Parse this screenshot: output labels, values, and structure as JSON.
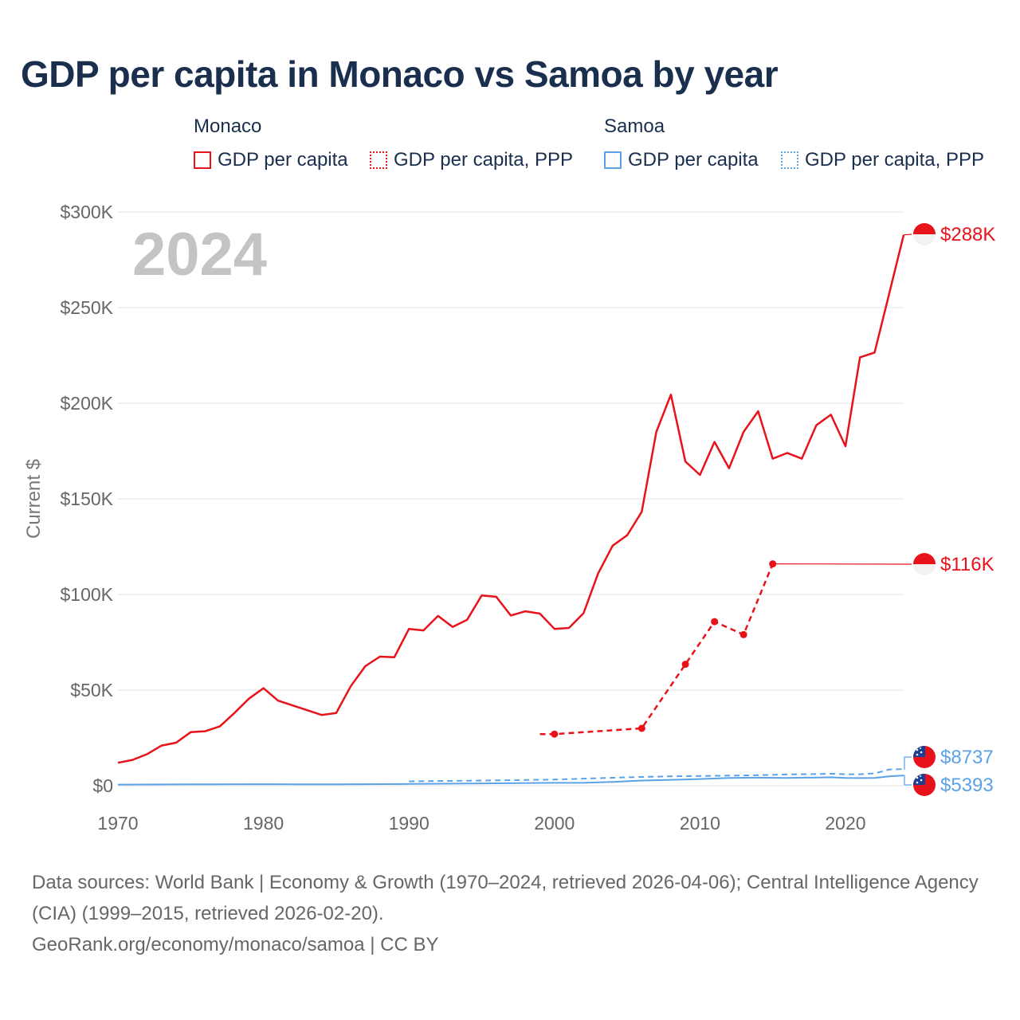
{
  "chart_data": {
    "type": "line",
    "title": "GDP per capita in Monaco vs Samoa by year",
    "ylabel": "Current $",
    "xlabel": "",
    "xlim": [
      1970,
      2024
    ],
    "ylim": [
      0,
      300000
    ],
    "x_ticks": [
      1970,
      1980,
      1990,
      2000,
      2010,
      2020
    ],
    "x_tick_labels": [
      "1970",
      "1980",
      "1990",
      "2000",
      "2010",
      "2020"
    ],
    "y_ticks": [
      0,
      50000,
      100000,
      150000,
      200000,
      250000,
      300000
    ],
    "y_tick_labels": [
      "$0",
      "$50K",
      "$100K",
      "$150K",
      "$200K",
      "$250K",
      "$300K"
    ],
    "year_watermark": "2024",
    "legend": {
      "groups": [
        {
          "name": "Monaco",
          "items": [
            {
              "label": "GDP per capita",
              "style": "solid",
              "color": "#e8121a"
            },
            {
              "label": "GDP per capita, PPP",
              "style": "dotted",
              "color": "#e8121a"
            }
          ]
        },
        {
          "name": "Samoa",
          "items": [
            {
              "label": "GDP per capita",
              "style": "solid",
              "color": "#5ba2e6"
            },
            {
              "label": "GDP per capita, PPP",
              "style": "dotted",
              "color": "#5ba2e6"
            }
          ]
        }
      ]
    },
    "series": [
      {
        "name": "Monaco GDP per capita",
        "color": "#e8121a",
        "style": "solid",
        "markers": false,
        "end_label": "$288K",
        "x": [
          1970,
          1971,
          1972,
          1973,
          1974,
          1975,
          1976,
          1977,
          1978,
          1979,
          1980,
          1981,
          1982,
          1983,
          1984,
          1985,
          1986,
          1987,
          1988,
          1989,
          1990,
          1991,
          1992,
          1993,
          1994,
          1995,
          1996,
          1997,
          1998,
          1999,
          2000,
          2001,
          2002,
          2003,
          2004,
          2005,
          2006,
          2007,
          2008,
          2009,
          2010,
          2011,
          2012,
          2013,
          2014,
          2015,
          2016,
          2017,
          2018,
          2019,
          2020,
          2021,
          2022,
          2023,
          2024
        ],
        "values": [
          12000,
          13500,
          16500,
          21000,
          22500,
          28000,
          28500,
          31000,
          38000,
          45500,
          51000,
          44500,
          42000,
          39500,
          37000,
          38000,
          52000,
          62500,
          67500,
          67200,
          82000,
          81200,
          88800,
          83000,
          86800,
          99500,
          98800,
          89000,
          91200,
          90000,
          82000,
          82500,
          90200,
          111000,
          125500,
          131000,
          143200,
          185000,
          204500,
          169500,
          162500,
          179800,
          166000,
          185000,
          195800,
          171000,
          174000,
          171000,
          188500,
          194000,
          177500,
          224000,
          226500,
          257000,
          288000
        ]
      },
      {
        "name": "Monaco GDP per capita, PPP",
        "color": "#e8121a",
        "style": "dashed",
        "markers": true,
        "end_label": "$116K",
        "x": [
          1999,
          2000,
          2006,
          2009,
          2011,
          2013,
          2015
        ],
        "values": [
          27000,
          27000,
          30000,
          63500,
          85800,
          79000,
          116000
        ]
      },
      {
        "name": "Samoa GDP per capita",
        "color": "#5ba2e6",
        "style": "solid",
        "markers": false,
        "end_label": "$5393",
        "x": [
          1970,
          1975,
          1980,
          1985,
          1990,
          1995,
          2000,
          2002,
          2004,
          2006,
          2008,
          2010,
          2012,
          2014,
          2016,
          2018,
          2019,
          2020,
          2021,
          2022,
          2023,
          2024
        ],
        "values": [
          600,
          700,
          800,
          700,
          900,
          1200,
          1500,
          1500,
          2000,
          2700,
          3100,
          3500,
          4100,
          4200,
          4100,
          4300,
          4400,
          4100,
          4000,
          4100,
          4900,
          5393
        ]
      },
      {
        "name": "Samoa GDP per capita, PPP",
        "color": "#5ba2e6",
        "style": "dashed",
        "markers": false,
        "end_label": "$8737",
        "x": [
          1990,
          1995,
          2000,
          2005,
          2008,
          2010,
          2012,
          2014,
          2016,
          2018,
          2019,
          2020,
          2021,
          2022,
          2023,
          2024
        ],
        "values": [
          2300,
          2700,
          3200,
          4400,
          4900,
          5100,
          5300,
          5500,
          5900,
          6100,
          6300,
          6000,
          6000,
          6400,
          8500,
          8737
        ]
      }
    ]
  },
  "footer": {
    "sources": "Data sources: World Bank | Economy & Growth (1970–2024, retrieved 2026-04-06); Central Intelligence Agency (CIA) (1999–2015, retrieved 2026-02-20).",
    "credit": "GeoRank.org/economy/monaco/samoa | CC BY"
  }
}
